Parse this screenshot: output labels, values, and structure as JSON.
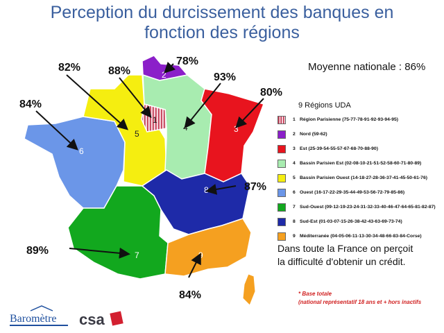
{
  "title_line1": "Perception du durcissement des banques en",
  "title_line2": "fonction des régions",
  "national": "Moyenne nationale : 86%",
  "legend_title": "9 Régions UDA",
  "legend": [
    {
      "num": "1",
      "label": "Région Parisienne (75-77-78-91-92-93-94-95)",
      "color": "#f0c8d0"
    },
    {
      "num": "2",
      "label": "Nord (59-62)",
      "color": "#8b1fc9"
    },
    {
      "num": "3",
      "label": "Est (25-39-54-55-57-67-68-70-88-90)",
      "color": "#e8141e"
    },
    {
      "num": "4",
      "label": "Bassin Parisien Est (02-08-10-21-51-52-58-60-71-80-89)",
      "color": "#a8ecb0"
    },
    {
      "num": "5",
      "label": "Bassin Parisien Ouest (14-18-27-28-36-37-41-45-50-61-76)",
      "color": "#f5ee10"
    },
    {
      "num": "6",
      "label": "Ouest (16-17-22-29-35-44-49-53-56-72-79-85-86)",
      "color": "#6b96e8"
    },
    {
      "num": "7",
      "label": "Sud-Ouest (09-12-19-23-24-31-32-33-40-46-47-64-65-81-82-87)",
      "color": "#12a81e"
    },
    {
      "num": "8",
      "label": "Sud-Est (01-03-07-15-26-38-42-43-63-69-73-74)",
      "color": "#1e2aa8"
    },
    {
      "num": "9",
      "label": "Méditerranée (04-05-06-11-13-30-34-48-66-83-84-Corse)",
      "color": "#f5a020"
    }
  ],
  "percents": {
    "r1": "88%",
    "r2": "78%",
    "r3": "80%",
    "r4": "93%",
    "r5": "82%",
    "r6": "84%",
    "r7": "89%",
    "r8": "87%",
    "r9": "84%"
  },
  "message_line1": "Dans toute la France on perçoit",
  "message_line2": "la difficulté d'obtenir un crédit.",
  "note_line1": "* Base totale",
  "note_line2": "(national représentatif 18 ans et + hors inactifs",
  "logo_barometre": "Baromètre",
  "logo_csa": "csa"
}
